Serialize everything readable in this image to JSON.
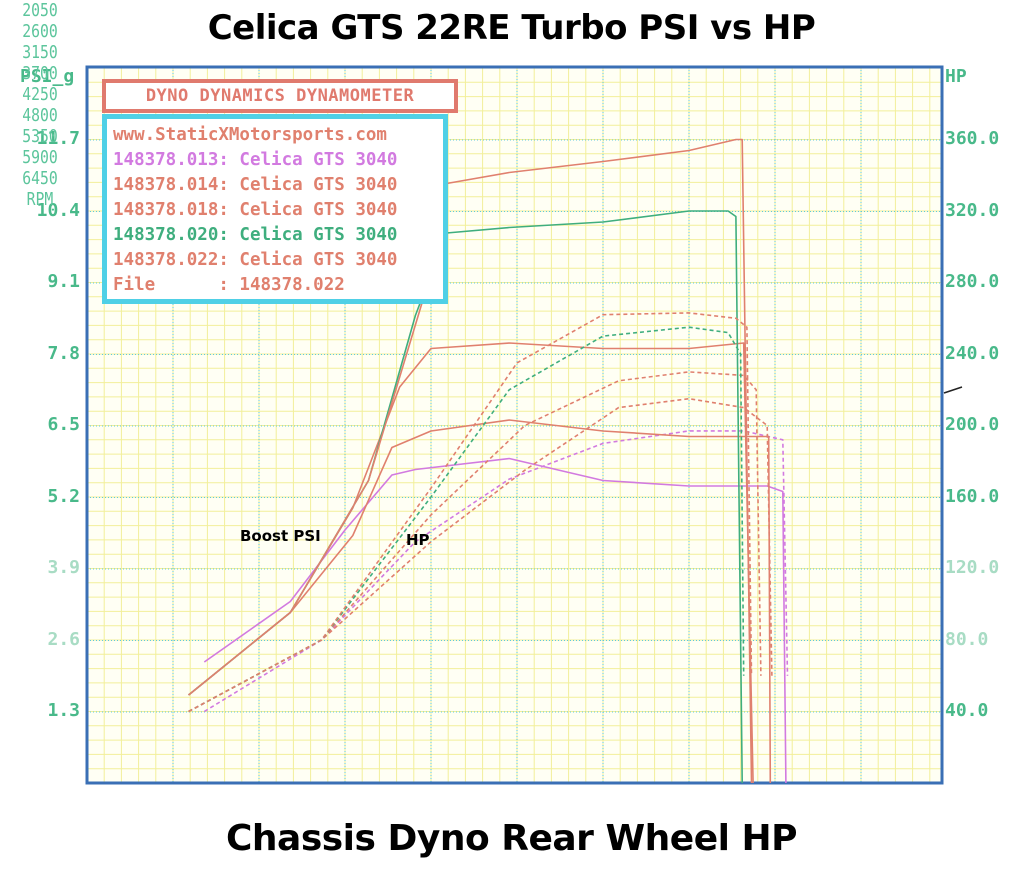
{
  "titles": {
    "top": "Celica GTS 22RE Turbo PSI vs HP",
    "bottom": "Chassis Dyno Rear Wheel HP"
  },
  "dyno_header": "DYNO DYNAMICS DYNAMOMETER",
  "legend": {
    "website": "www.StaticXMotorsports.com",
    "runs": [
      {
        "id": "148378.013",
        "label": "148378.013: Celica GTS 3040",
        "color": "#d27ae0"
      },
      {
        "id": "148378.014",
        "label": "148378.014: Celica GTS 3040",
        "color": "#e0806e"
      },
      {
        "id": "148378.018",
        "label": "148378.018: Celica GTS 3040",
        "color": "#e0806e"
      },
      {
        "id": "148378.020",
        "label": "148378.020: Celica GTS 3040",
        "color": "#3fae7e"
      },
      {
        "id": "148378.022",
        "label": "148378.022: Celica GTS 3040",
        "color": "#e0806e"
      }
    ],
    "file_line": "File      : 148378.022"
  },
  "axes": {
    "left_title": "PSI_g",
    "right_title": "HP",
    "x_unit": "RPM",
    "left_ticks": [
      "11.7",
      "10.4",
      "9.1",
      "7.8",
      "6.5",
      "5.2",
      "3.9",
      "2.6",
      "1.3"
    ],
    "right_ticks": [
      "360.0",
      "320.0",
      "280.0",
      "240.0",
      "200.0",
      "160.0",
      "120.0",
      "80.0",
      "40.0"
    ],
    "x_ticks": [
      "2050",
      "2600",
      "3150",
      "3700",
      "4250",
      "4800",
      "5350",
      "5900",
      "6450"
    ]
  },
  "annotations": {
    "boost": "Boost PSI",
    "hp": "HP"
  },
  "colors": {
    "axis_text": "#49b98a",
    "frame": "#3a6fb5",
    "grid_major": "#5cc8e0",
    "grid_minor": "#f2ef9a",
    "header_border": "#e07a6e",
    "legend_border": "#4fd0e6"
  },
  "chart_data": {
    "type": "line",
    "title": "Celica GTS 22RE Turbo PSI vs HP",
    "subtitle": "Chassis Dyno Rear Wheel HP",
    "xlabel": "RPM",
    "ylabel_left": "PSI_g",
    "ylabel_right": "HP",
    "xlim": [
      1500,
      6950
    ],
    "ylim_left": [
      0,
      13.0
    ],
    "ylim_right": [
      0,
      400
    ],
    "grid": true,
    "legend_position": "top-left inset",
    "annotations": [
      "Boost PSI",
      "HP"
    ],
    "series": [
      {
        "name": "148378.013 Boost PSI",
        "axis": "left",
        "style": "solid",
        "color": "#d27ae0",
        "x": [
          2250,
          2800,
          3150,
          3450,
          3600,
          4200,
          4800,
          5350,
          5850,
          5950,
          5970
        ],
        "y": [
          2.2,
          3.3,
          4.6,
          5.6,
          5.7,
          5.9,
          5.5,
          5.4,
          5.4,
          5.3,
          0
        ]
      },
      {
        "name": "148378.013 HP",
        "axis": "right",
        "style": "dashed",
        "color": "#d27ae0",
        "x": [
          2250,
          3000,
          3600,
          4200,
          4800,
          5350,
          5700,
          5950,
          5980
        ],
        "y": [
          40,
          80,
          135,
          170,
          190,
          197,
          197,
          192,
          60
        ]
      },
      {
        "name": "148378.014 Boost PSI",
        "axis": "left",
        "style": "solid",
        "color": "#e0806e",
        "x": [
          2150,
          2800,
          3200,
          3450,
          3700,
          4200,
          4800,
          5350,
          5700,
          5860,
          5870
        ],
        "y": [
          1.6,
          3.1,
          4.5,
          6.1,
          6.4,
          6.6,
          6.4,
          6.3,
          6.3,
          6.3,
          0
        ]
      },
      {
        "name": "148378.014 HP",
        "axis": "right",
        "style": "dashed",
        "color": "#e0806e",
        "x": [
          2150,
          3000,
          3700,
          4300,
          4900,
          5350,
          5700,
          5850,
          5880
        ],
        "y": [
          40,
          80,
          135,
          175,
          210,
          215,
          210,
          200,
          60
        ]
      },
      {
        "name": "148378.018 Boost PSI",
        "axis": "left",
        "style": "solid",
        "color": "#e0806e",
        "x": [
          2150,
          2800,
          3200,
          3500,
          3700,
          4200,
          4800,
          5350,
          5700,
          5760
        ],
        "y": [
          1.6,
          3.1,
          5.0,
          7.2,
          7.9,
          8.0,
          7.9,
          7.9,
          8.0,
          0
        ]
      },
      {
        "name": "148378.018 HP",
        "axis": "right",
        "style": "dashed",
        "color": "#e0806e",
        "x": [
          2150,
          3000,
          3700,
          4300,
          4900,
          5350,
          5700,
          5780,
          5810
        ],
        "y": [
          40,
          80,
          150,
          200,
          225,
          230,
          228,
          220,
          60
        ]
      },
      {
        "name": "148378.020 Boost PSI",
        "axis": "left",
        "style": "solid",
        "color": "#3fae7e",
        "x": [
          2150,
          2800,
          3300,
          3600,
          3800,
          4200,
          4800,
          5350,
          5600,
          5650,
          5690
        ],
        "y": [
          1.6,
          3.1,
          5.5,
          8.5,
          10.0,
          10.1,
          10.2,
          10.4,
          10.4,
          10.3,
          0
        ]
      },
      {
        "name": "148378.020 HP",
        "axis": "right",
        "style": "dashed",
        "color": "#3fae7e",
        "x": [
          2150,
          3000,
          3700,
          4200,
          4800,
          5350,
          5600,
          5680,
          5700
        ],
        "y": [
          40,
          80,
          160,
          220,
          250,
          255,
          252,
          240,
          60
        ]
      },
      {
        "name": "148378.022 Boost PSI",
        "axis": "left",
        "style": "solid",
        "color": "#e0806e",
        "x": [
          2150,
          2800,
          3300,
          3650,
          3800,
          4200,
          4800,
          5350,
          5650,
          5690,
          5750
        ],
        "y": [
          1.6,
          3.1,
          5.5,
          8.8,
          10.9,
          11.1,
          11.3,
          11.5,
          11.7,
          11.7,
          0
        ]
      },
      {
        "name": "148378.022 HP",
        "axis": "right",
        "style": "dashed",
        "color": "#e0806e",
        "x": [
          2150,
          3000,
          3700,
          4250,
          4800,
          5350,
          5650,
          5720,
          5750
        ],
        "y": [
          40,
          80,
          165,
          235,
          262,
          263,
          260,
          255,
          60
        ]
      }
    ]
  }
}
